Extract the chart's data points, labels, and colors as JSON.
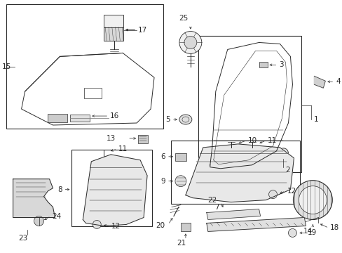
{
  "bg_color": "#ffffff",
  "lc": "#2a2a2a",
  "fig_width": 4.89,
  "fig_height": 3.6,
  "dpi": 100
}
